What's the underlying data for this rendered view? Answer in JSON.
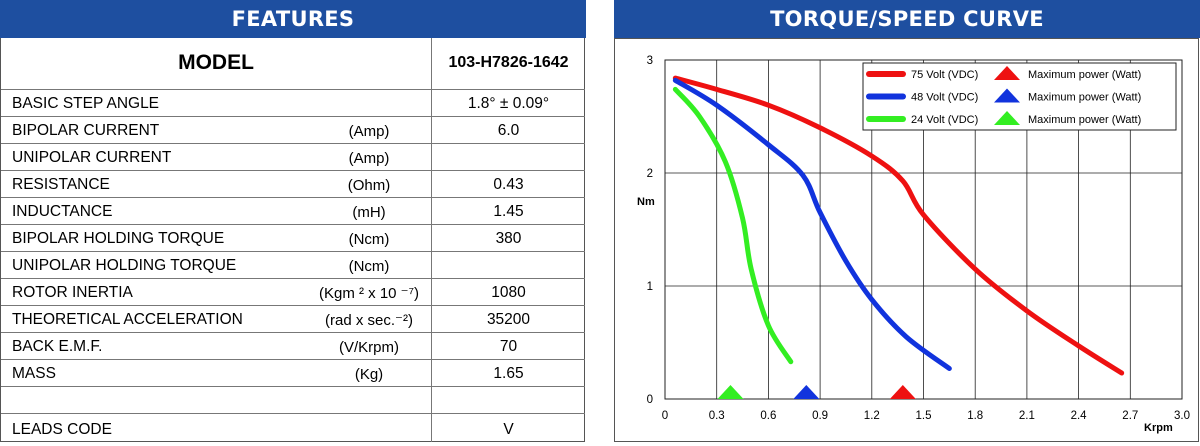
{
  "features": {
    "title": "FEATURES",
    "model_label": "MODEL",
    "model_value": "103-H7826-1642",
    "rows": [
      {
        "name": "BASIC STEP ANGLE",
        "unit": "",
        "value": "1.8° ± 0.09°"
      },
      {
        "name": "BIPOLAR CURRENT",
        "unit": "(Amp)",
        "value": "6.0"
      },
      {
        "name": "UNIPOLAR CURRENT",
        "unit": "(Amp)",
        "value": ""
      },
      {
        "name": "RESISTANCE",
        "unit": "(Ohm)",
        "value": "0.43"
      },
      {
        "name": "INDUCTANCE",
        "unit": "(mH)",
        "value": "1.45"
      },
      {
        "name": "BIPOLAR HOLDING TORQUE",
        "unit": "(Ncm)",
        "value": "380"
      },
      {
        "name": "UNIPOLAR HOLDING TORQUE",
        "unit": "(Ncm)",
        "value": ""
      },
      {
        "name": "ROTOR INERTIA",
        "unit": "(Kgm ² x 10 ⁻⁷)",
        "value": "1080"
      },
      {
        "name": "THEORETICAL ACCELERATION",
        "unit": "(rad x sec.⁻²)",
        "value": "35200"
      },
      {
        "name": "BACK E.M.F.",
        "unit": "(V/Krpm)",
        "value": "70"
      },
      {
        "name": "MASS",
        "unit": "(Kg)",
        "value": "1.65"
      },
      {
        "name": "",
        "unit": "",
        "value": ""
      },
      {
        "name": "LEADS CODE",
        "unit": "",
        "value": "V"
      }
    ]
  },
  "chart_data": {
    "type": "line",
    "title": "TORQUE/SPEED CURVE",
    "xlabel": "Krpm",
    "ylabel": "Nm",
    "xlim": [
      0,
      3.0
    ],
    "ylim": [
      0,
      3
    ],
    "xticks": [
      "0",
      "0.3",
      "0.6",
      "0.9",
      "1.2",
      "1.5",
      "1.8",
      "2.1",
      "2.4",
      "2.7",
      "3.0"
    ],
    "yticks": [
      "0",
      "1",
      "2",
      "3"
    ],
    "grid": true,
    "legend_position": "top-right",
    "max_power_label": "Maximum power (Watt)",
    "series": [
      {
        "name": "75 Volt (VDC)",
        "color": "#ee1111",
        "x": [
          0.06,
          0.3,
          0.6,
          0.9,
          1.2,
          1.38,
          1.5,
          1.8,
          2.1,
          2.4,
          2.65
        ],
        "y": [
          2.84,
          2.74,
          2.6,
          2.4,
          2.15,
          1.93,
          1.63,
          1.15,
          0.78,
          0.47,
          0.23
        ],
        "max_power_x": 1.38
      },
      {
        "name": "48 Volt (VDC)",
        "color": "#1133dd",
        "x": [
          0.06,
          0.3,
          0.6,
          0.8,
          0.9,
          1.05,
          1.2,
          1.4,
          1.65
        ],
        "y": [
          2.82,
          2.6,
          2.25,
          1.98,
          1.65,
          1.22,
          0.88,
          0.55,
          0.27
        ],
        "max_power_x": 0.82
      },
      {
        "name": "24 Volt (VDC)",
        "color": "#33ee22",
        "x": [
          0.06,
          0.2,
          0.35,
          0.45,
          0.5,
          0.6,
          0.73
        ],
        "y": [
          2.74,
          2.5,
          2.1,
          1.6,
          1.15,
          0.65,
          0.33
        ],
        "max_power_x": 0.38
      }
    ]
  }
}
